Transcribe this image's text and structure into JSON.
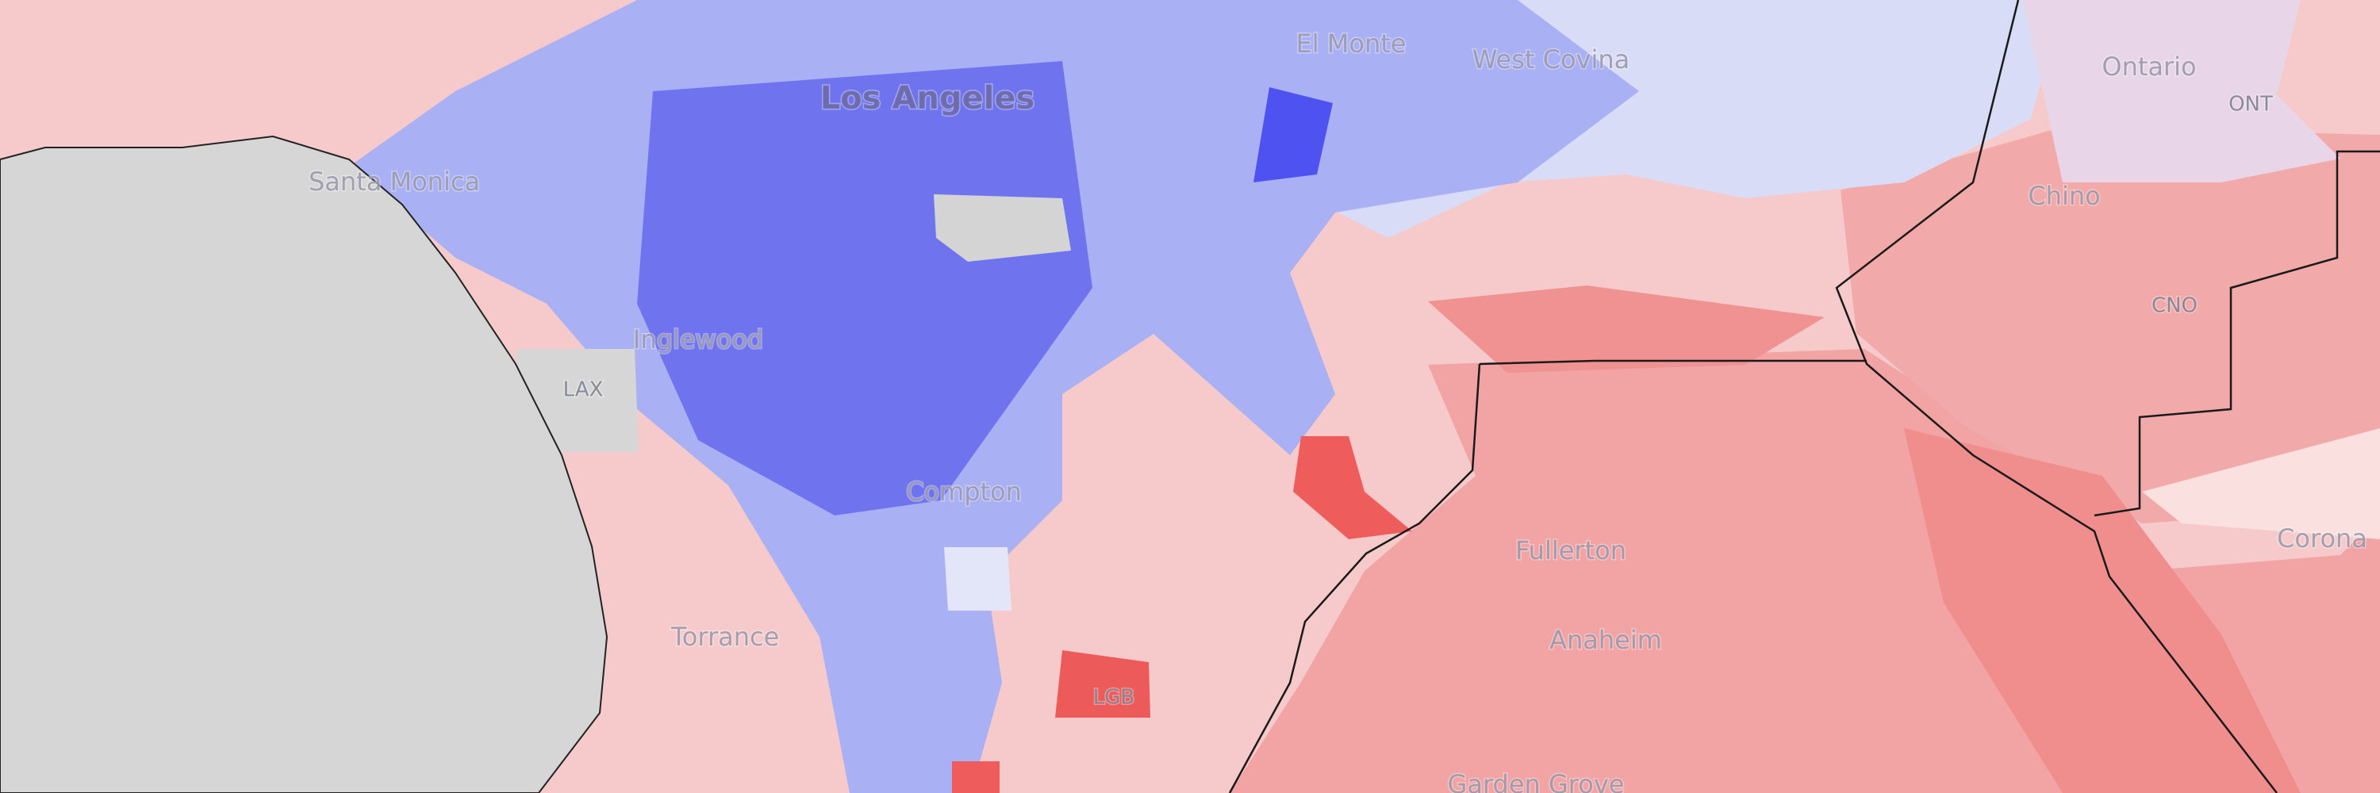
{
  "map": {
    "labels": [
      {
        "text": "El Monte"
      },
      {
        "text": "West Covina"
      },
      {
        "text": "Ontario"
      },
      {
        "text": "ONT"
      },
      {
        "text": "Los Angeles"
      },
      {
        "text": "Santa Monica"
      },
      {
        "text": "Chino"
      },
      {
        "text": "CNO"
      },
      {
        "text": "Inglewood"
      },
      {
        "text": "LAX"
      },
      {
        "text": "Compton"
      },
      {
        "text": "Fullerton"
      },
      {
        "text": "Corona"
      },
      {
        "text": "Torrance"
      },
      {
        "text": "Anaheim"
      },
      {
        "text": "LGB"
      },
      {
        "text": "Garden Grove"
      }
    ]
  }
}
